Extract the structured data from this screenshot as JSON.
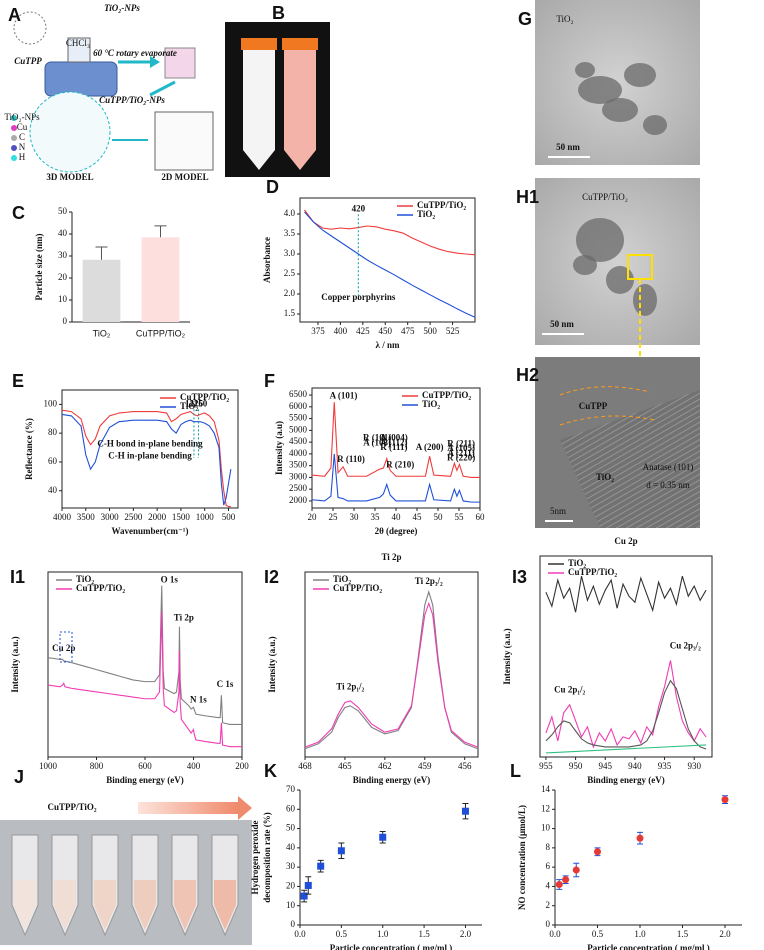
{
  "figures": [
    {
      "label": "A",
      "texts": [
        "CuTPP",
        "TiO₂-NPs",
        "CHCl₃",
        "60 °C rotary evaporate",
        "CuTPP/TiO₂-NPs",
        "3D MODEL",
        "2D MODEL",
        "TiO₂-NPs",
        "Cu",
        "C",
        "N",
        "H"
      ]
    },
    {
      "label": "B",
      "texts": [
        "TiO₂",
        "CuTPP/TiO₂"
      ]
    },
    {
      "label": "G",
      "texts": [
        "TiO₂",
        "50 nm"
      ]
    },
    {
      "label": "H1",
      "texts": [
        "CuTPP/TiO₂",
        "50 nm"
      ]
    },
    {
      "label": "H2",
      "texts": [
        "CuTPP",
        "TiO₂",
        "Anatase (101)",
        "d = 0.35 nm",
        "5nm"
      ]
    },
    {
      "label": "J",
      "texts": [
        "CuTPP/TiO₂"
      ]
    }
  ],
  "chart_data": [
    {
      "type": "bar",
      "label": "C",
      "ylabel": "Particle size (nm)",
      "categories": [
        "TiO₂",
        "CuTPP/TiO₂"
      ],
      "values": [
        28.3,
        38.5
      ],
      "errors": [
        5.8,
        5.2
      ],
      "colors": [
        "#dcdcdc",
        "#fde0de"
      ],
      "ylim": [
        0,
        50
      ],
      "yticks": [
        0,
        10,
        20,
        30,
        40,
        50
      ],
      "frame": false
    },
    {
      "type": "line",
      "label": "D",
      "xlabel": "λ / nm",
      "ylabel": "Absorbance",
      "x": [
        360,
        370,
        380,
        390,
        400,
        410,
        420,
        430,
        440,
        450,
        460,
        470,
        480,
        490,
        500,
        510,
        520,
        530,
        540,
        550
      ],
      "series": [
        {
          "name": "CuTPP/TiO₂",
          "color": "#f03c3c",
          "values": [
            4.1,
            3.8,
            3.65,
            3.62,
            3.65,
            3.63,
            3.66,
            3.7,
            3.68,
            3.62,
            3.58,
            3.52,
            3.4,
            3.3,
            3.2,
            3.12,
            3.06,
            3.02,
            3.0,
            2.98
          ]
        },
        {
          "name": "TiO₂",
          "color": "#2050d8",
          "values": [
            4.05,
            3.8,
            3.6,
            3.45,
            3.3,
            3.15,
            3.0,
            2.85,
            2.72,
            2.6,
            2.48,
            2.35,
            2.22,
            2.1,
            1.98,
            1.86,
            1.75,
            1.63,
            1.52,
            1.42
          ]
        }
      ],
      "xlim": [
        355,
        550
      ],
      "xticks": [
        375,
        400,
        425,
        450,
        475,
        500,
        525
      ],
      "ylim": [
        1.3,
        4.4
      ],
      "yticks": [
        1.5,
        {
          "value": 2,
          "label": "2.0"
        },
        2.5,
        {
          "value": 3,
          "label": "3.0"
        },
        3.5,
        {
          "value": 4,
          "label": "4.0"
        }
      ],
      "legend": "upper right",
      "frame": true,
      "annotation_color": "#0a9c9c",
      "annotations": [
        {
          "text": "420",
          "x": 420,
          "y": 4.12,
          "guide": true
        },
        {
          "text": "Copper porphyrins",
          "x": 420,
          "y": 1.9
        }
      ]
    },
    {
      "type": "line",
      "label": "E",
      "xlabel": "Wavenumber(cm⁻¹)",
      "ylabel": "Reflectance (%)",
      "x": [
        4000,
        3800,
        3600,
        3500,
        3400,
        3300,
        3200,
        3000,
        2800,
        2500,
        2000,
        1800,
        1700,
        1600,
        1500,
        1400,
        1300,
        1226,
        1150,
        1100,
        1000,
        900,
        800,
        700,
        650,
        600,
        550,
        500,
        450
      ],
      "series": [
        {
          "name": "CuTPP/TiO₂",
          "color": "#f03c3c",
          "values": [
            96,
            95,
            90,
            78,
            72,
            76,
            85,
            92,
            94,
            95,
            95,
            94,
            88,
            90,
            93,
            94,
            95,
            93,
            92,
            93,
            94,
            92,
            88,
            75,
            55,
            40,
            30,
            29,
            29
          ]
        },
        {
          "name": "TiO₂",
          "color": "#2050d8",
          "values": [
            93,
            92,
            85,
            65,
            55,
            60,
            72,
            84,
            88,
            89,
            89,
            88,
            83,
            80,
            86,
            88,
            89,
            88,
            88,
            88,
            87,
            85,
            80,
            70,
            45,
            30,
            35,
            45,
            55
          ]
        }
      ],
      "xlim": [
        4000,
        300
      ],
      "xticks": [
        4000,
        3500,
        3000,
        2500,
        2000,
        1500,
        1000,
        500
      ],
      "ylim": [
        28,
        110
      ],
      "yticks": [
        40,
        60,
        80,
        100
      ],
      "legend": "upper right",
      "frame": true,
      "annotation_color": "#0a9c9c",
      "annotations": [
        {
          "text": "1226",
          "x": 1226,
          "y": 100,
          "guide": true
        },
        {
          "text": "1150",
          "x": 1130,
          "y": 100,
          "guide": true
        },
        {
          "text": "C-H bond in-plane bending",
          "x": 2150,
          "y": 72
        },
        {
          "text": "C-H in-plane bending",
          "x": 2150,
          "y": 64
        }
      ]
    },
    {
      "type": "line",
      "label": "F",
      "xlabel": "2θ (degree)",
      "ylabel": "Intensity (a.u)",
      "x": [
        20,
        23,
        24.5,
        25.3,
        26.2,
        27.4,
        28.5,
        33,
        36.1,
        37,
        37.8,
        38.6,
        40,
        44,
        47,
        48,
        49,
        53,
        53.9,
        54.5,
        55.1,
        56,
        58,
        60
      ],
      "series": [
        {
          "name": "CuTPP/TiO₂",
          "color": "#f03c3c",
          "values": [
            3100,
            3050,
            3400,
            6200,
            3200,
            3450,
            3050,
            3050,
            3350,
            3400,
            3800,
            3300,
            3050,
            3050,
            3050,
            3900,
            3100,
            3050,
            3600,
            3300,
            3550,
            3050,
            3000,
            3000
          ]
        },
        {
          "name": "TiO₂",
          "color": "#2050d8",
          "values": [
            2050,
            2000,
            2200,
            4000,
            2150,
            2100,
            2000,
            2000,
            2150,
            2300,
            2700,
            2250,
            2000,
            2000,
            2000,
            2700,
            2050,
            2000,
            2500,
            2200,
            2450,
            2000,
            1950,
            1950
          ]
        }
      ],
      "xlim": [
        20,
        60
      ],
      "xticks": [
        20,
        25,
        30,
        35,
        40,
        45,
        50,
        55,
        60
      ],
      "ylim": [
        1700,
        6800
      ],
      "yticks": [
        2000,
        2500,
        3000,
        3500,
        4000,
        4500,
        5000,
        5500,
        6000,
        6500
      ],
      "legend": "upper right",
      "frame": true,
      "annotation_color": "#0a9c9c",
      "annotations": [
        {
          "text": "A (101)",
          "x": 27.5,
          "y": 6450
        },
        {
          "text": "R (110)",
          "x": 29.3,
          "y": 3750
        },
        {
          "text": "R (101)",
          "x": 35.5,
          "y": 4650
        },
        {
          "text": "A (103)",
          "x": 35.5,
          "y": 4450
        },
        {
          "text": "A (004)",
          "x": 39.5,
          "y": 4650
        },
        {
          "text": "A (112)",
          "x": 39.5,
          "y": 4450
        },
        {
          "text": "R (111)",
          "x": 39.5,
          "y": 4250
        },
        {
          "text": "R (210)",
          "x": 41,
          "y": 3500
        },
        {
          "text": "A (200)",
          "x": 48,
          "y": 4250
        },
        {
          "text": "R (211)",
          "x": 55.5,
          "y": 4400
        },
        {
          "text": "A (105)",
          "x": 55.5,
          "y": 4200
        },
        {
          "text": "A (211)",
          "x": 55.5,
          "y": 4000
        },
        {
          "text": "R (220)",
          "x": 55.5,
          "y": 3800
        }
      ]
    },
    {
      "type": "line",
      "label": "I1",
      "xlabel": "Binding energy (eV)",
      "ylabel": "Intensity (a.u.)",
      "x": [
        1000,
        950,
        940,
        935,
        930,
        900,
        850,
        800,
        750,
        700,
        650,
        600,
        560,
        540,
        531,
        525,
        520,
        480,
        470,
        460,
        458,
        455,
        450,
        420,
        410,
        400,
        398,
        390,
        350,
        300,
        290,
        285,
        280,
        250,
        200
      ],
      "series": [
        {
          "name": "TiO₂",
          "color": "#808080",
          "values": [
            58,
            57,
            57,
            56,
            56,
            55,
            53,
            51,
            49,
            47,
            45,
            44,
            44,
            48,
            100,
            50,
            40,
            37,
            38,
            50,
            76,
            45,
            34,
            30,
            28,
            29,
            28,
            25,
            24,
            23,
            23,
            36,
            20,
            19,
            19
          ]
        },
        {
          "name": "CuTPP/TiO₂",
          "color": "#f03cb4",
          "values": [
            42,
            41,
            42,
            43,
            41,
            40,
            39,
            38,
            37,
            36,
            35,
            34,
            34,
            38,
            85,
            40,
            30,
            26,
            27,
            38,
            62,
            32,
            22,
            16,
            14,
            16,
            14,
            10,
            9,
            8,
            8,
            20,
            7,
            6,
            6
          ]
        }
      ],
      "xlim": [
        1000,
        200
      ],
      "xticks": [
        1000,
        800,
        600,
        400,
        200
      ],
      "ylim": [
        0,
        108
      ],
      "legend": "upper left",
      "frame": true,
      "annotation_color": "#111",
      "annotations": [
        {
          "text": "O 1s",
          "x": 500,
          "y": 103
        },
        {
          "text": "Ti 2p",
          "x": 440,
          "y": 81
        },
        {
          "text": "Cu 2p",
          "x": 935,
          "y": 63
        },
        {
          "text": "N 1s",
          "x": 380,
          "y": 33
        },
        {
          "text": "C 1s",
          "x": 270,
          "y": 42
        }
      ]
    },
    {
      "type": "line",
      "label": "I2",
      "title": "Ti 2p",
      "xlabel": "Binding energy (eV)",
      "ylabel": "Intensity (a.u.)",
      "x": [
        468,
        467,
        466,
        465.5,
        465,
        464.6,
        464,
        463,
        462,
        461,
        460,
        459.5,
        459,
        458.7,
        458.4,
        458,
        457.5,
        457,
        456,
        455
      ],
      "series": [
        {
          "name": "TiO₂",
          "color": "#808080",
          "values": [
            5,
            8,
            15,
            24,
            30,
            31,
            28,
            18,
            14,
            16,
            30,
            60,
            92,
            100,
            92,
            60,
            30,
            15,
            8,
            5
          ]
        },
        {
          "name": "CuTPP/TiO₂",
          "color": "#f03cb4",
          "values": [
            6,
            9,
            17,
            26,
            33,
            34,
            30,
            20,
            15,
            17,
            31,
            58,
            86,
            93,
            86,
            57,
            30,
            16,
            9,
            6
          ]
        }
      ],
      "xlim": [
        468,
        455
      ],
      "xticks": [
        468,
        465,
        462,
        459,
        456
      ],
      "ylim": [
        0,
        112
      ],
      "legend": "upper left",
      "frame": true,
      "annotation_color": "#111",
      "annotations": [
        {
          "text": "Ti 2p₁/₂",
          "x": 464.6,
          "y": 42
        },
        {
          "text": "Ti 2p₃/₂",
          "x": 458.7,
          "y": 106
        }
      ]
    },
    {
      "type": "line",
      "label": "I3",
      "title": "Cu 2p",
      "xlabel": "Binding energy (eV)",
      "ylabel": "Intensity (a.u.)",
      "x": [
        955,
        954,
        953,
        952,
        951,
        950,
        949,
        948,
        947,
        946,
        945,
        944,
        943,
        942,
        941,
        940,
        939,
        938,
        937,
        936,
        935,
        934,
        933,
        932,
        931,
        930,
        929,
        928
      ],
      "series": [
        {
          "name": "TiO₂",
          "color": "#333333",
          "values": [
            82,
            75,
            88,
            79,
            84,
            72,
            90,
            78,
            85,
            76,
            83,
            88,
            74,
            86,
            80,
            77,
            89,
            81,
            73,
            87,
            79,
            84,
            76,
            90,
            80,
            85,
            78,
            83
          ]
        },
        {
          "name": "CuTPP/TiO₂",
          "color": "#f03cb4",
          "values": [
            12,
            20,
            8,
            22,
            26,
            18,
            10,
            15,
            5,
            12,
            8,
            14,
            6,
            10,
            9,
            13,
            7,
            15,
            11,
            25,
            35,
            48,
            30,
            18,
            12,
            8,
            14,
            10
          ]
        },
        {
          "color": "#555555",
          "values": [
            8,
            11,
            15,
            18,
            17,
            13,
            9,
            7,
            6,
            5.5,
            5,
            5,
            5,
            5,
            5,
            5.5,
            6,
            8,
            13,
            22,
            32,
            38,
            34,
            24,
            14,
            8,
            5,
            4
          ]
        },
        {
          "color": "#30c080",
          "x": [
            955,
            928
          ],
          "values": [
            2,
            6
          ]
        }
      ],
      "xlim": [
        956,
        927
      ],
      "xticks": [
        955,
        950,
        945,
        940,
        935,
        930
      ],
      "ylim": [
        0,
        100
      ],
      "legend": "upper left",
      "frame": true,
      "annotation_color": "#111",
      "annotations": [
        {
          "text": "Cu 2p₁/₂",
          "x": 951,
          "y": 33
        },
        {
          "text": "Cu 2p₃/₂",
          "x": 931.5,
          "y": 55
        }
      ]
    },
    {
      "type": "scatter",
      "label": "K",
      "xlabel": "Particle concentration ( mg/ml )",
      "ylabel": [
        "Hydrogen peroxide",
        "decomposition rate (%)"
      ],
      "x": [
        0.05,
        0.1,
        0.25,
        0.5,
        1,
        2
      ],
      "values": [
        15,
        20.5,
        30.5,
        38.5,
        45.5,
        59
      ],
      "errors": [
        3,
        4.5,
        3,
        4,
        3,
        4
      ],
      "color": "#1f4fd8",
      "error_color": "#222222",
      "xlim": [
        0,
        2.2
      ],
      "xticks": [
        {
          "value": 0,
          "label": "0.0"
        },
        0.5,
        {
          "value": 1,
          "label": "1.0"
        },
        1.5,
        {
          "value": 2,
          "label": "2.0"
        }
      ],
      "ylim": [
        0,
        70
      ],
      "yticks": [
        0,
        10,
        20,
        30,
        40,
        50,
        60,
        70
      ],
      "frame": false
    },
    {
      "type": "scatter",
      "label": "L",
      "xlabel": "Particle concentration ( mg/ml )",
      "ylabel": "NO concentration (μmol/L)",
      "x": [
        0.05,
        0.125,
        0.25,
        0.5,
        1,
        2
      ],
      "values": [
        4.2,
        4.7,
        5.7,
        7.6,
        9,
        13
      ],
      "errors": [
        0.5,
        0.4,
        0.7,
        0.4,
        0.6,
        0.4
      ],
      "color": "#e53935",
      "error_color": "#1f4fd8",
      "xlim": [
        0,
        2.2
      ],
      "xticks": [
        {
          "value": 0,
          "label": "0.0"
        },
        0.5,
        {
          "value": 1,
          "label": "1.0"
        },
        1.5,
        {
          "value": 2,
          "label": "2.0"
        }
      ],
      "ylim": [
        0,
        14
      ],
      "yticks": [
        0,
        2,
        4,
        6,
        8,
        10,
        12,
        14
      ],
      "frame": false
    }
  ]
}
